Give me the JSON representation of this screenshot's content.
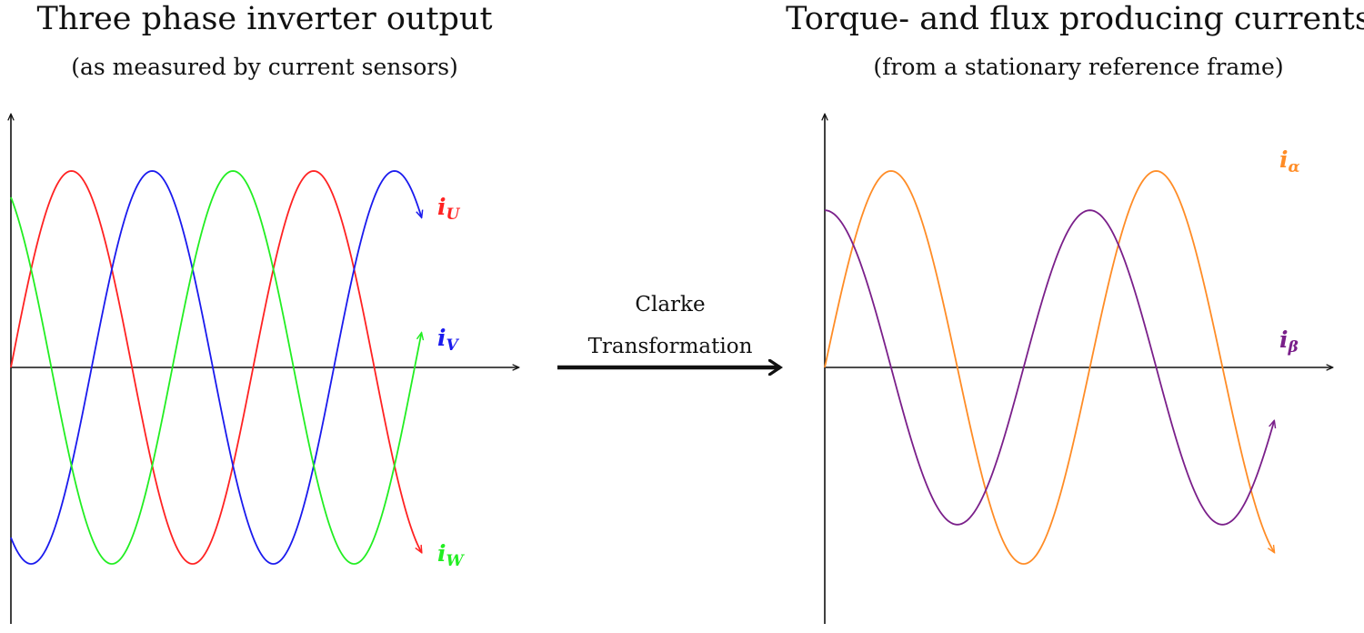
{
  "left_panel": {
    "title": "Three phase inverter output",
    "subtitle": "(as measured by current sensors)",
    "labels": {
      "u": {
        "base": "i",
        "sub": "U",
        "color": "#ff2222"
      },
      "v": {
        "base": "i",
        "sub": "V",
        "color": "#1a1aee"
      },
      "w": {
        "base": "i",
        "sub": "W",
        "color": "#22ee22"
      }
    }
  },
  "transform": {
    "line1": "Clarke",
    "line2": "Transformation"
  },
  "right_panel": {
    "title": "Torque- and flux producing currents",
    "subtitle": "(from a stationary reference frame)",
    "labels": {
      "alpha": {
        "base": "i",
        "sub": "α",
        "color": "#ff8c26"
      },
      "beta": {
        "base": "i",
        "sub": "β",
        "color": "#7a1f8a"
      }
    }
  },
  "chart_data": [
    {
      "type": "line",
      "title": "Three phase inverter output",
      "subtitle": "(as measured by current sensors)",
      "x_unit": "degrees",
      "xlim": [
        0,
        610
      ],
      "ylim": [
        -1.25,
        1.25
      ],
      "series": [
        {
          "name": "i_U",
          "color": "#ff2222",
          "phase_deg": 0,
          "amplitude": 1
        },
        {
          "name": "i_V",
          "color": "#1a1aee",
          "phase_deg": -120,
          "amplitude": 1
        },
        {
          "name": "i_W",
          "color": "#22ee22",
          "phase_deg": 120,
          "amplitude": 1
        }
      ]
    },
    {
      "type": "line",
      "title": "Torque- and flux producing currents",
      "subtitle": "(from a stationary reference frame)",
      "x_unit": "degrees",
      "xlim": [
        0,
        610
      ],
      "ylim": [
        -1.25,
        1.25
      ],
      "series": [
        {
          "name": "i_α",
          "color": "#ff8c26",
          "phase_deg": 0,
          "amplitude": 1
        },
        {
          "name": "i_β",
          "color": "#7a1f8a",
          "phase_deg": 90,
          "amplitude": 0.8
        }
      ]
    }
  ]
}
